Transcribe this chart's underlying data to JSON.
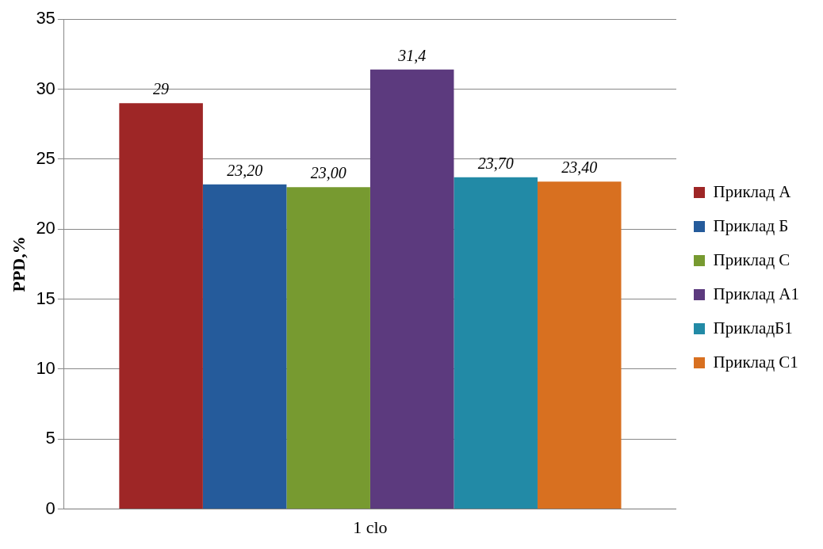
{
  "chart_data": {
    "type": "bar",
    "categories": [
      "1 clo"
    ],
    "ylabel": "PPD,%",
    "ylim": [
      0,
      35
    ],
    "yticks": [
      0,
      5,
      10,
      15,
      20,
      25,
      30,
      35
    ],
    "grid": "y",
    "legend": "right",
    "series": [
      {
        "name": "Приклад А",
        "color": "#9e2626",
        "values": [
          29
        ],
        "value_labels": [
          "29"
        ]
      },
      {
        "name": "Приклад Б",
        "color": "#255b9b",
        "values": [
          23.2
        ],
        "value_labels": [
          "23,20"
        ]
      },
      {
        "name": "Приклад С",
        "color": "#779a30",
        "values": [
          23
        ],
        "value_labels": [
          "23,00"
        ]
      },
      {
        "name": "Приклад А1",
        "color": "#5c3a7e",
        "values": [
          31.4
        ],
        "value_labels": [
          "31,4"
        ]
      },
      {
        "name": "ПрикладБ1",
        "color": "#228aa6",
        "values": [
          23.7
        ],
        "value_labels": [
          "23,70"
        ]
      },
      {
        "name": "Приклад С1",
        "color": "#d87020",
        "values": [
          23.4
        ],
        "value_labels": [
          "23,40"
        ]
      }
    ]
  }
}
